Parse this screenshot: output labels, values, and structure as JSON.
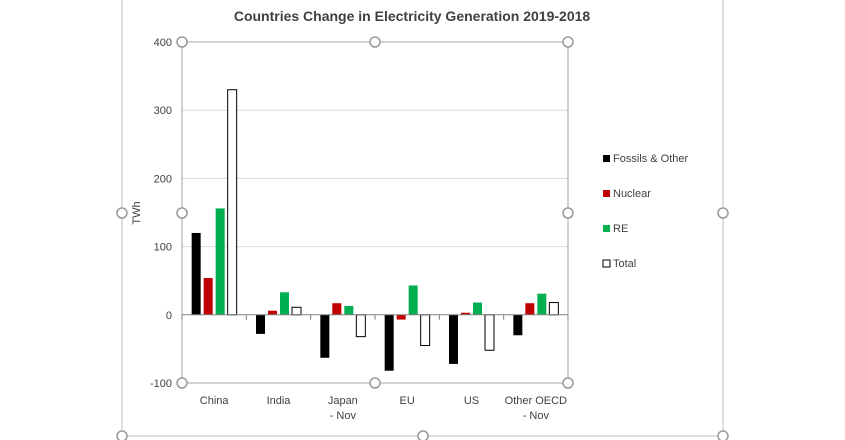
{
  "chart_data": {
    "type": "bar",
    "title": "Countries Change in Electricity Generation 2019-2018",
    "ylabel": "TWh",
    "xlabel": "",
    "ylim": [
      -100,
      400
    ],
    "yticks": [
      400,
      300,
      200,
      100,
      0,
      -100
    ],
    "grid": true,
    "legend_position": "right",
    "categories": [
      "China",
      "India",
      "Japan - Nov",
      "EU",
      "US",
      "Other OECD - Nov"
    ],
    "category_lines": [
      [
        "China"
      ],
      [
        "India"
      ],
      [
        "Japan",
        "- Nov"
      ],
      [
        "EU"
      ],
      [
        "US"
      ],
      [
        "Other OECD",
        "- Nov"
      ]
    ],
    "series": [
      {
        "name": "Fossils & Other",
        "color": "#000000",
        "values": [
          120,
          -28,
          -63,
          -82,
          -72,
          -30
        ]
      },
      {
        "name": "Nuclear",
        "color": "#c00000",
        "values": [
          54,
          6,
          17,
          -7,
          3,
          17
        ]
      },
      {
        "name": "RE",
        "color": "#00b050",
        "values": [
          156,
          33,
          13,
          43,
          18,
          31
        ]
      },
      {
        "name": "Total",
        "color": "#ffffff",
        "values": [
          330,
          11,
          -32,
          -45,
          -52,
          18
        ]
      }
    ]
  }
}
